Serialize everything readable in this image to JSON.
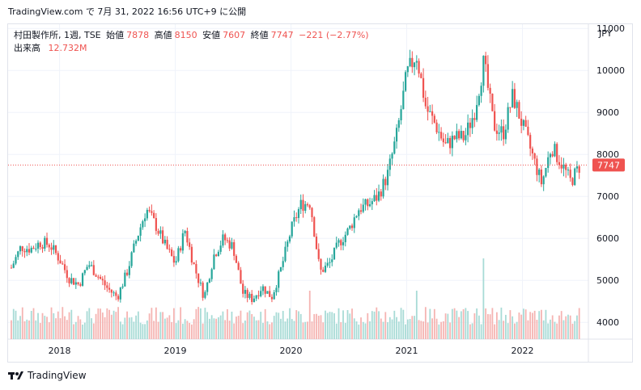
{
  "header": {
    "published": "TradingView.com で 7月 31, 2022 16:56 UTC+9 に公開"
  },
  "legend": {
    "symbol": "村田製作所, 1週, TSE",
    "open_label": "始値",
    "open_value": "7878",
    "high_label": "高値",
    "high_value": "8150",
    "low_label": "安値",
    "low_value": "7607",
    "close_label": "終値",
    "close_value": "7747",
    "change": "−221 (−2.77%)",
    "volume_label": "出来高",
    "volume_value": "12.732M"
  },
  "colors": {
    "up": "#26a69a",
    "down": "#ef5350",
    "up_volume": "#a8dbd6",
    "down_volume": "#f5b4b2",
    "price_line": "#ef5350",
    "grid": "#f0f3fa",
    "frame": "#e0e3eb",
    "text": "#131722"
  },
  "footer": {
    "brand": "TradingView",
    "logo_icon": "tradingview-logo-icon"
  },
  "chart_data": {
    "type": "candlestick",
    "currency": "JPY",
    "interval": "1週",
    "x_range": [
      "2017-08",
      "2022-07"
    ],
    "x_ticks": [
      "2018",
      "2019",
      "2020",
      "2021",
      "2022"
    ],
    "y_ticks": [
      "4000",
      "5000",
      "6000",
      "7000",
      "8000",
      "9000",
      "10000",
      "11000"
    ],
    "ylim": [
      3600,
      11100
    ],
    "last_price": 7747,
    "last_price_label": "7747",
    "price_path": [
      [
        "2017-08",
        5300
      ],
      [
        "2017-09",
        5800
      ],
      [
        "2017-10",
        5750
      ],
      [
        "2017-11",
        5900
      ],
      [
        "2017-12",
        5850
      ],
      [
        "2018-01",
        5500
      ],
      [
        "2018-02",
        5050
      ],
      [
        "2018-03",
        4900
      ],
      [
        "2018-04",
        5400
      ],
      [
        "2018-05",
        5100
      ],
      [
        "2018-06",
        4800
      ],
      [
        "2018-07",
        4600
      ],
      [
        "2018-08",
        5200
      ],
      [
        "2018-09",
        6000
      ],
      [
        "2018-10",
        6700
      ],
      [
        "2018-11",
        6300
      ],
      [
        "2018-12",
        5800
      ],
      [
        "2019-01",
        5400
      ],
      [
        "2019-02",
        6200
      ],
      [
        "2019-03",
        5300
      ],
      [
        "2019-04",
        4600
      ],
      [
        "2019-05",
        5600
      ],
      [
        "2019-06",
        6000
      ],
      [
        "2019-07",
        5800
      ],
      [
        "2019-08",
        4700
      ],
      [
        "2019-09",
        4550
      ],
      [
        "2019-10",
        4850
      ],
      [
        "2019-11",
        4600
      ],
      [
        "2019-12",
        5300
      ],
      [
        "2020-01",
        6200
      ],
      [
        "2020-02",
        6800
      ],
      [
        "2020-03",
        6850
      ],
      [
        "2020-04",
        5200
      ],
      [
        "2020-05",
        5400
      ],
      [
        "2020-06",
        5900
      ],
      [
        "2020-07",
        6200
      ],
      [
        "2020-08",
        6700
      ],
      [
        "2020-09",
        6800
      ],
      [
        "2020-10",
        7000
      ],
      [
        "2020-11",
        7500
      ],
      [
        "2020-12",
        8500
      ],
      [
        "2021-01",
        9900
      ],
      [
        "2021-02",
        10400
      ],
      [
        "2021-03",
        9100
      ],
      [
        "2021-04",
        8700
      ],
      [
        "2021-05",
        8200
      ],
      [
        "2021-06",
        8400
      ],
      [
        "2021-07",
        8400
      ],
      [
        "2021-08",
        9000
      ],
      [
        "2021-09",
        10200
      ],
      [
        "2021-10",
        8700
      ],
      [
        "2021-11",
        8500
      ],
      [
        "2021-12",
        9400
      ],
      [
        "2022-01",
        8700
      ],
      [
        "2022-02",
        8000
      ],
      [
        "2022-03",
        7300
      ],
      [
        "2022-04",
        8200
      ],
      [
        "2022-05",
        7800
      ],
      [
        "2022-06",
        7350
      ],
      [
        "2022-07",
        7747
      ]
    ],
    "volume_peaks": [
      [
        "2021-09",
        "max"
      ],
      [
        "2020-03",
        "high"
      ],
      [
        "2021-02",
        "high"
      ]
    ]
  }
}
